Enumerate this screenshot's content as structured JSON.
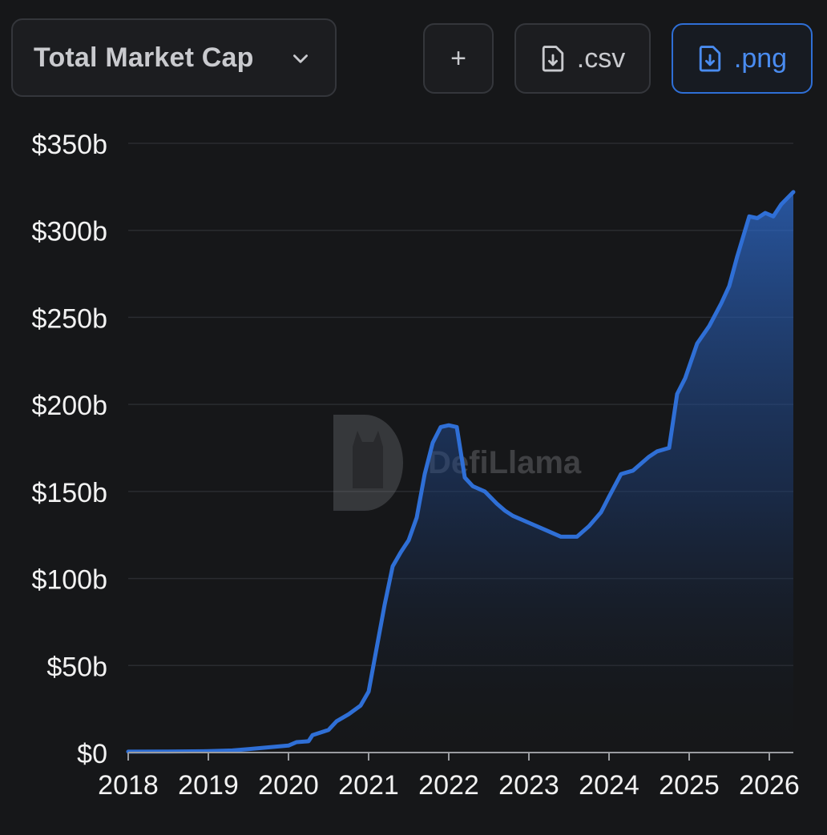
{
  "toolbar": {
    "metric_label": "Total Market Cap",
    "add_label": "+",
    "csv_label": ".csv",
    "png_label": ".png"
  },
  "watermark": {
    "text": "DefiLlama"
  },
  "colors": {
    "background": "#161719",
    "line": "#2f6fd6",
    "accent": "#4a8cf0",
    "grid": "#2a2c30",
    "axis_text": "#f2f2f2"
  },
  "chart_data": {
    "type": "area",
    "title": "",
    "xlabel": "",
    "ylabel": "",
    "xlim": [
      2018.0,
      2026.3
    ],
    "ylim": [
      0,
      350
    ],
    "x_ticks": [
      2018,
      2019,
      2020,
      2021,
      2022,
      2023,
      2024,
      2025,
      2026
    ],
    "x_tick_labels": [
      "2018",
      "2019",
      "2020",
      "2021",
      "2022",
      "2023",
      "2024",
      "2025",
      "2026"
    ],
    "y_ticks": [
      0,
      50,
      100,
      150,
      200,
      250,
      300,
      350
    ],
    "y_tick_labels": [
      "$0",
      "$50b",
      "$100b",
      "$150b",
      "$200b",
      "$250b",
      "$300b",
      "$350b"
    ],
    "grid": true,
    "legend": "none",
    "series": [
      {
        "x": [
          2018.0,
          2018.5,
          2019.0,
          2019.3,
          2019.5,
          2019.75,
          2020.0,
          2020.1,
          2020.25,
          2020.3,
          2020.5,
          2020.6,
          2020.75,
          2020.9,
          2021.0,
          2021.1,
          2021.2,
          2021.3,
          2021.4,
          2021.5,
          2021.6,
          2021.7,
          2021.8,
          2021.9,
          2022.0,
          2022.1,
          2022.2,
          2022.3,
          2022.35,
          2022.45,
          2022.6,
          2022.7,
          2022.8,
          2023.0,
          2023.2,
          2023.4,
          2023.6,
          2023.75,
          2023.9,
          2024.0,
          2024.15,
          2024.3,
          2024.5,
          2024.6,
          2024.75,
          2024.85,
          2024.95,
          2025.1,
          2025.25,
          2025.4,
          2025.5,
          2025.6,
          2025.75,
          2025.85,
          2025.95,
          2026.05,
          2026.15,
          2026.3
        ],
        "y": [
          0.5,
          0.6,
          0.8,
          1.2,
          2,
          3,
          4,
          6,
          6.5,
          10,
          13,
          18,
          22,
          27,
          35,
          60,
          85,
          107,
          115,
          122,
          135,
          160,
          178,
          187,
          188,
          187,
          158,
          153,
          152,
          150,
          143,
          139,
          136,
          132,
          128,
          124,
          124,
          130,
          138,
          147,
          160,
          162,
          170,
          173,
          175,
          206,
          215,
          235,
          245,
          258,
          268,
          285,
          308,
          307,
          310,
          308,
          315,
          322
        ]
      }
    ]
  }
}
